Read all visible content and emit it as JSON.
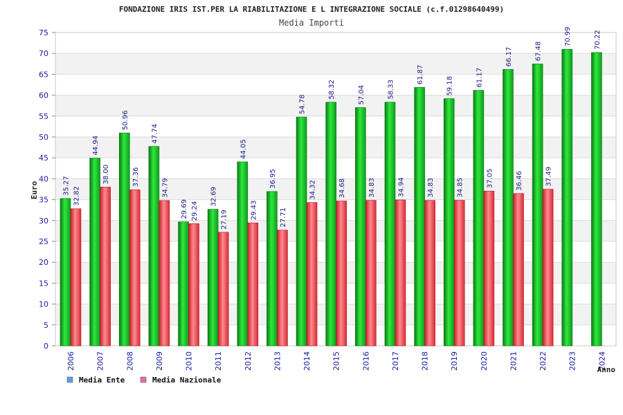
{
  "chart_data": {
    "type": "bar",
    "title": "FONDAZIONE IRIS IST.PER LA RIABILITAZIONE E L INTEGRAZIONE SOCIALE (c.f.01298640499)",
    "subtitle": "Media Importi",
    "xlabel": "Anno",
    "ylabel": "Euro",
    "ylim": [
      0,
      75
    ],
    "yticks": [
      0,
      5,
      10,
      15,
      20,
      25,
      30,
      35,
      40,
      45,
      50,
      55,
      60,
      65,
      70,
      75
    ],
    "grid": "horizontal alternating bands",
    "legend_position": "bottom-left",
    "categories": [
      "2006",
      "2007",
      "2008",
      "2009",
      "2010",
      "2011",
      "2012",
      "2013",
      "2014",
      "2015",
      "2016",
      "2017",
      "2018",
      "2019",
      "2020",
      "2021",
      "2022",
      "2023",
      "2024"
    ],
    "series": [
      {
        "name": "Media Ente",
        "color": "#1bbf2a",
        "legend_color": "#5f9ee8",
        "values": [
          35.27,
          44.94,
          50.96,
          47.74,
          29.69,
          32.69,
          44.05,
          36.95,
          54.78,
          58.32,
          57.04,
          58.33,
          61.87,
          59.18,
          61.17,
          66.17,
          67.48,
          70.99,
          70.22
        ],
        "labels": [
          "35.27",
          "44.94",
          "50.96",
          "47.74",
          "29.69",
          "32.69",
          "44.05",
          "36.95",
          "54.78",
          "58.32",
          "57.04",
          "58.33",
          "61.87",
          "59.18",
          "61.17",
          "66.17",
          "67.48",
          "70.99",
          "70.22"
        ]
      },
      {
        "name": "Media Nazionale",
        "color": "#e8404a",
        "legend_color": "#e06fa0",
        "values": [
          32.82,
          38.0,
          37.36,
          34.79,
          29.24,
          27.19,
          29.43,
          27.71,
          34.32,
          34.68,
          34.83,
          34.94,
          34.83,
          34.85,
          37.05,
          36.46,
          37.49,
          null,
          null
        ],
        "labels": [
          "32.82",
          "38.00",
          "37.36",
          "34.79",
          "29.24",
          "27.19",
          "29.43",
          "27.71",
          "34.32",
          "34.68",
          "34.83",
          "34.94",
          "34.83",
          "34.85",
          "37.05",
          "36.46",
          "37.49",
          "",
          ""
        ]
      }
    ]
  }
}
